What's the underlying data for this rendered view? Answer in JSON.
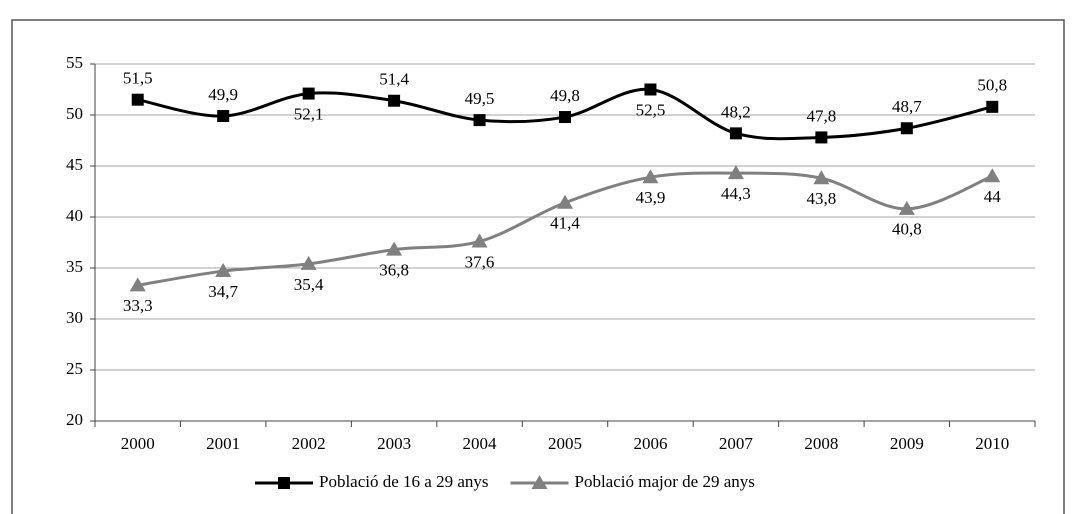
{
  "chart_data": {
    "type": "line",
    "categories": [
      "2000",
      "2001",
      "2002",
      "2003",
      "2004",
      "2005",
      "2006",
      "2007",
      "2008",
      "2009",
      "2010"
    ],
    "series": [
      {
        "name": "Població de 16 a 29 anys",
        "color": "#000000",
        "marker": "square",
        "values": [
          51.5,
          49.9,
          52.1,
          51.4,
          49.5,
          49.8,
          52.5,
          48.2,
          47.8,
          48.7,
          50.8
        ],
        "value_labels": [
          "51,5",
          "49,9",
          "52,1",
          "51,4",
          "49,5",
          "49,8",
          "52,5",
          "48,2",
          "47,8",
          "48,7",
          "50,8"
        ]
      },
      {
        "name": "Població major de 29 anys",
        "color": "#808080",
        "marker": "triangle",
        "values": [
          33.3,
          34.7,
          35.4,
          36.8,
          37.6,
          41.4,
          43.9,
          44.3,
          43.8,
          40.8,
          44
        ],
        "value_labels": [
          "33,3",
          "34,7",
          "35,4",
          "36,8",
          "37,6",
          "41,4",
          "43,9",
          "44,3",
          "43,8",
          "40,8",
          "44"
        ]
      }
    ],
    "ylim": [
      20,
      55
    ],
    "yticks": [
      20,
      25,
      30,
      35,
      40,
      45,
      50,
      55
    ],
    "grid": true,
    "legend": "bottom"
  }
}
